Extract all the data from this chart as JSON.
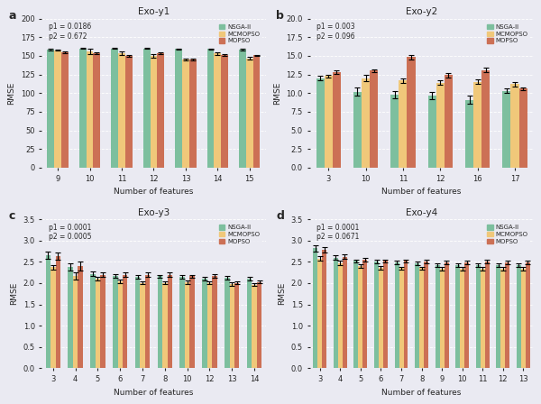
{
  "subplots": [
    {
      "label": "a",
      "title": "Exo-y1",
      "p1": "p1 = 0.0186",
      "p2": "p2 = 0.672",
      "xlabel": "Number of features",
      "ylabel": "RMSE",
      "ylim": [
        0,
        200
      ],
      "yticks": [
        0,
        25,
        50,
        75,
        100,
        125,
        150,
        175,
        200
      ],
      "categories": [
        9,
        10,
        11,
        12,
        13,
        14,
        15
      ],
      "nsga2": [
        158.0,
        160.0,
        160.0,
        160.0,
        159.0,
        159.0,
        158.5
      ],
      "mcmopso": [
        157.5,
        156.0,
        153.5,
        150.0,
        145.0,
        153.0,
        146.5
      ],
      "mopso": [
        155.0,
        153.5,
        150.0,
        153.5,
        145.0,
        151.0,
        150.5
      ],
      "nsga2_err": [
        1.0,
        1.0,
        1.0,
        1.0,
        1.0,
        1.0,
        1.0
      ],
      "mcmopso_err": [
        1.0,
        3.5,
        2.0,
        2.5,
        1.5,
        1.5,
        1.5
      ],
      "mopso_err": [
        1.0,
        1.0,
        1.0,
        1.5,
        1.0,
        1.5,
        1.0
      ]
    },
    {
      "label": "b",
      "title": "Exo-y2",
      "p1": "p1 = 0.003",
      "p2": "p2 = 0.096",
      "xlabel": "Number of features",
      "ylabel": "RMSE",
      "ylim": [
        0,
        20
      ],
      "yticks": [
        0.0,
        2.5,
        5.0,
        7.5,
        10.0,
        12.5,
        15.0,
        17.5,
        20.0
      ],
      "categories": [
        3,
        10,
        11,
        12,
        16,
        17
      ],
      "nsga2": [
        12.0,
        10.2,
        9.8,
        9.7,
        9.1,
        10.3
      ],
      "mcmopso": [
        12.3,
        12.0,
        11.7,
        11.4,
        11.5,
        11.2
      ],
      "mopso": [
        12.8,
        13.0,
        14.8,
        12.4,
        13.1,
        10.6
      ],
      "nsga2_err": [
        0.3,
        0.5,
        0.5,
        0.5,
        0.5,
        0.3
      ],
      "mcmopso_err": [
        0.2,
        0.4,
        0.3,
        0.3,
        0.3,
        0.3
      ],
      "mopso_err": [
        0.2,
        0.2,
        0.3,
        0.3,
        0.3,
        0.2
      ]
    },
    {
      "label": "c",
      "title": "Exo-y3",
      "p1": "p1 = 0.0001",
      "p2": "p2 = 0.0005",
      "xlabel": "Number of features",
      "ylabel": "RMSE",
      "ylim": [
        0,
        3.5
      ],
      "yticks": [
        0,
        0.5,
        1.0,
        1.5,
        2.0,
        2.5,
        3.0,
        3.5
      ],
      "categories": [
        3,
        4,
        5,
        6,
        7,
        8,
        10,
        12,
        13,
        14
      ],
      "nsga2": [
        2.65,
        2.38,
        2.22,
        2.17,
        2.15,
        2.16,
        2.15,
        2.1,
        2.13,
        2.1
      ],
      "mcmopso": [
        2.37,
        2.17,
        2.1,
        2.05,
        2.01,
        2.01,
        2.02,
        2.01,
        1.98,
        1.96
      ],
      "mopso": [
        2.63,
        2.4,
        2.2,
        2.2,
        2.2,
        2.2,
        2.16,
        2.17,
        2.01,
        2.03
      ],
      "nsga2_err": [
        0.08,
        0.08,
        0.05,
        0.04,
        0.04,
        0.04,
        0.04,
        0.04,
        0.04,
        0.04
      ],
      "mcmopso_err": [
        0.05,
        0.08,
        0.04,
        0.04,
        0.04,
        0.04,
        0.04,
        0.03,
        0.04,
        0.03
      ],
      "mopso_err": [
        0.08,
        0.1,
        0.05,
        0.05,
        0.05,
        0.05,
        0.04,
        0.04,
        0.04,
        0.04
      ]
    },
    {
      "label": "d",
      "title": "Exo-y4",
      "p1": "p1 = 0.0001",
      "p2": "p2 = 0.0671",
      "xlabel": "Number of features",
      "ylabel": "RMSE",
      "ylim": [
        0,
        3.5
      ],
      "yticks": [
        0,
        0.5,
        1.0,
        1.5,
        2.0,
        2.5,
        3.0,
        3.5
      ],
      "categories": [
        3,
        4,
        5,
        6,
        7,
        8,
        9,
        10,
        11,
        12,
        13
      ],
      "nsga2": [
        2.82,
        2.6,
        2.52,
        2.5,
        2.48,
        2.46,
        2.43,
        2.42,
        2.42,
        2.42,
        2.42
      ],
      "mcmopso": [
        2.58,
        2.47,
        2.4,
        2.36,
        2.35,
        2.35,
        2.33,
        2.34,
        2.34,
        2.33,
        2.34
      ],
      "mopso": [
        2.78,
        2.62,
        2.55,
        2.52,
        2.52,
        2.5,
        2.48,
        2.48,
        2.5,
        2.48,
        2.48
      ],
      "nsga2_err": [
        0.07,
        0.05,
        0.04,
        0.04,
        0.04,
        0.04,
        0.04,
        0.04,
        0.04,
        0.04,
        0.04
      ],
      "mcmopso_err": [
        0.06,
        0.05,
        0.04,
        0.04,
        0.04,
        0.04,
        0.04,
        0.04,
        0.04,
        0.04,
        0.04
      ],
      "mopso_err": [
        0.06,
        0.05,
        0.04,
        0.04,
        0.04,
        0.04,
        0.04,
        0.04,
        0.04,
        0.04,
        0.04
      ]
    }
  ],
  "colors": {
    "nsga2": "#7dbf9e",
    "mcmopso": "#f0c87a",
    "mopso": "#cc7055"
  },
  "legend_labels": [
    "NSGA-II",
    "MCMOPSO",
    "MOPSO"
  ],
  "background_color": "#eaeaf2",
  "axes_bg": "#eaeaf2",
  "grid_color": "white"
}
